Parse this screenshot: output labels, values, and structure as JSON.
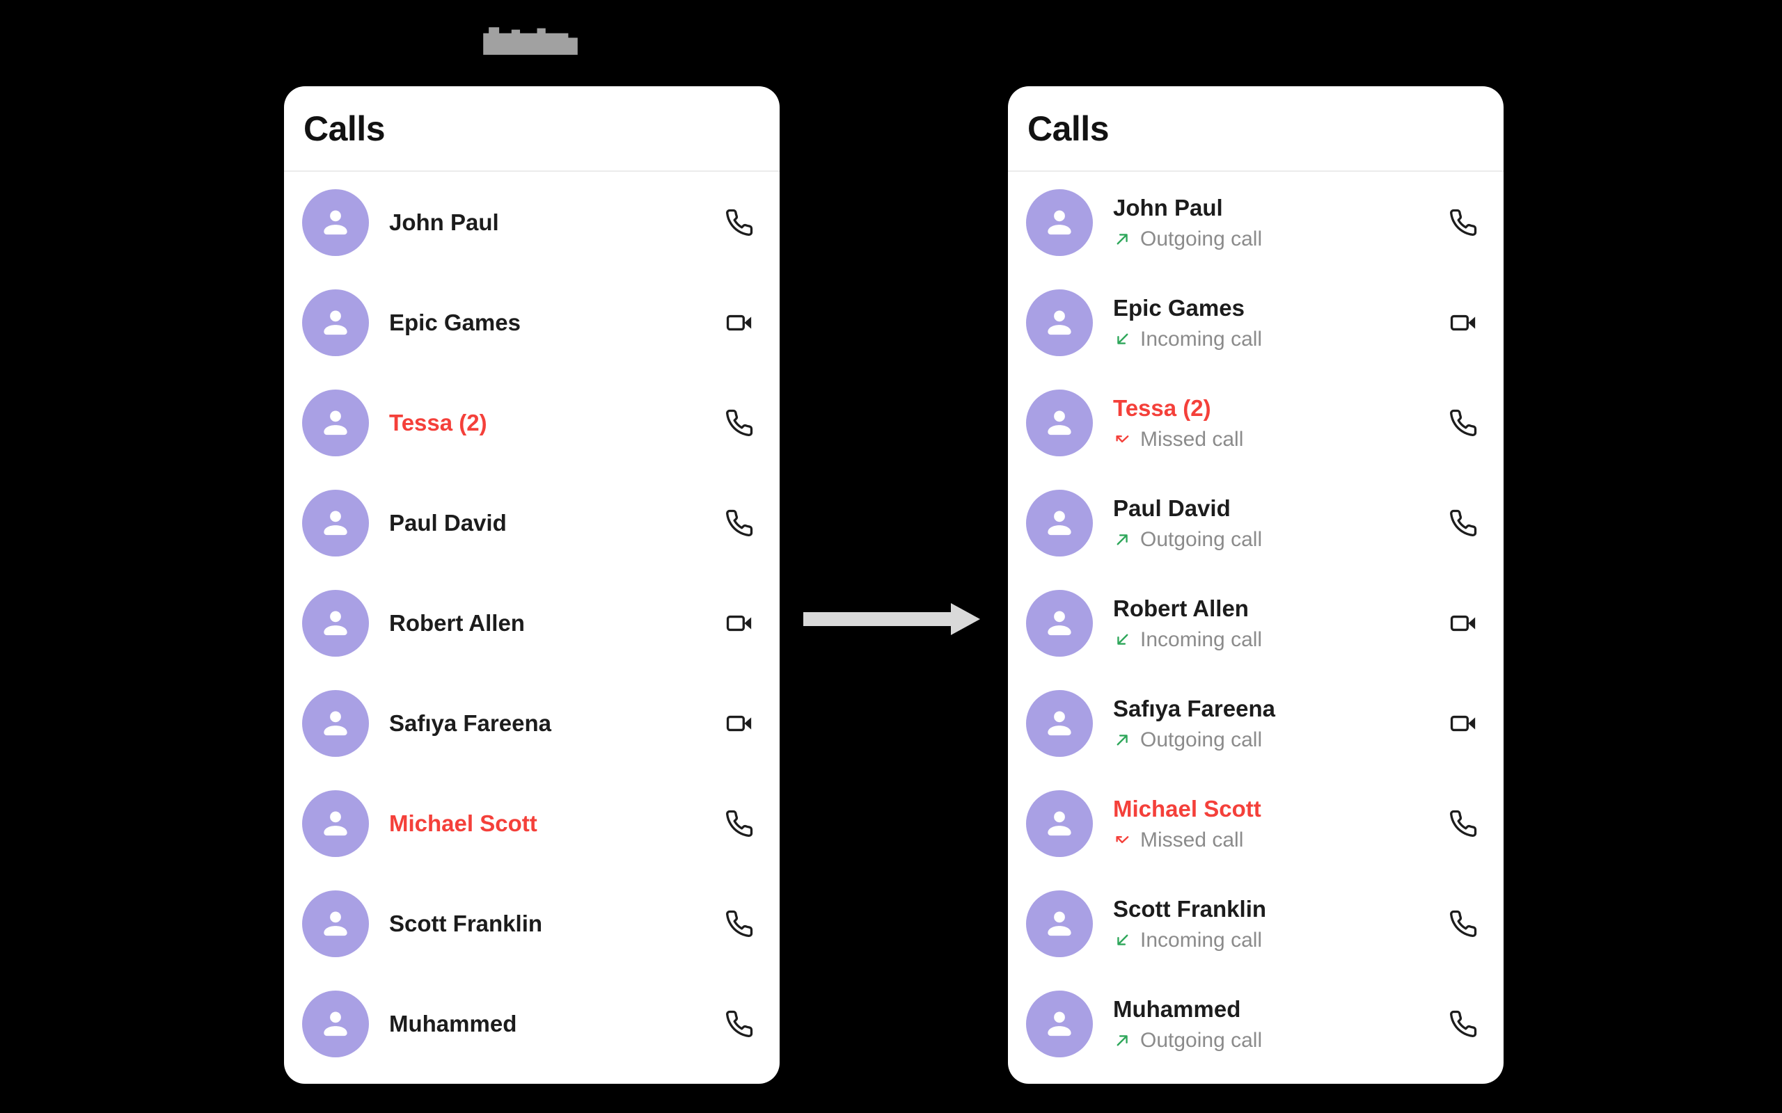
{
  "colors": {
    "background": "#000000",
    "panel_background": "#ffffff",
    "title_text": "#121212",
    "name_text": "#1c1c1c",
    "missed_red": "#f4403a",
    "status_gray": "#8b8b8b",
    "direction_green": "#2ea65a",
    "avatar_purple": "#a9a0e4",
    "call_icon_black": "#1d1d1d",
    "arrow_gray": "#d9d9d9",
    "watermark_gray": "#a1a1a1"
  },
  "left_panel": {
    "title": "Calls",
    "rows": [
      {
        "name": "John Paul",
        "red": false,
        "call_icon": "phone-icon"
      },
      {
        "name": "Epic Games",
        "red": false,
        "call_icon": "videocam-icon"
      },
      {
        "name": "Tessa (2)",
        "red": true,
        "call_icon": "phone-icon"
      },
      {
        "name": "Paul David",
        "red": false,
        "call_icon": "phone-icon"
      },
      {
        "name": "Robert Allen",
        "red": false,
        "call_icon": "videocam-icon"
      },
      {
        "name": "Safıya Fareena",
        "red": false,
        "call_icon": "videocam-icon"
      },
      {
        "name": "Michael Scott",
        "red": true,
        "call_icon": "phone-icon"
      },
      {
        "name": "Scott Franklin",
        "red": false,
        "call_icon": "phone-icon"
      },
      {
        "name": "Muhammed",
        "red": false,
        "call_icon": "phone-icon"
      }
    ]
  },
  "right_panel": {
    "title": "Calls",
    "rows": [
      {
        "name": "John Paul",
        "red": false,
        "status": "Outgoing call",
        "direction": "outgoing",
        "call_icon": "phone-icon"
      },
      {
        "name": "Epic Games",
        "red": false,
        "status": "Incoming call",
        "direction": "incoming",
        "call_icon": "videocam-icon"
      },
      {
        "name": "Tessa (2)",
        "red": true,
        "status": "Missed call",
        "direction": "missed",
        "call_icon": "phone-icon"
      },
      {
        "name": "Paul David",
        "red": false,
        "status": "Outgoing call",
        "direction": "outgoing",
        "call_icon": "phone-icon"
      },
      {
        "name": "Robert Allen",
        "red": false,
        "status": "Incoming call",
        "direction": "incoming",
        "call_icon": "videocam-icon"
      },
      {
        "name": "Safıya Fareena",
        "red": false,
        "status": "Outgoing call",
        "direction": "outgoing",
        "call_icon": "videocam-icon"
      },
      {
        "name": "Michael Scott",
        "red": true,
        "status": "Missed call",
        "direction": "missed",
        "call_icon": "phone-icon"
      },
      {
        "name": "Scott Franklin",
        "red": false,
        "status": "Incoming call",
        "direction": "incoming",
        "call_icon": "phone-icon"
      },
      {
        "name": "Muhammed",
        "red": false,
        "status": "Outgoing call",
        "direction": "outgoing",
        "call_icon": "phone-icon"
      }
    ]
  }
}
